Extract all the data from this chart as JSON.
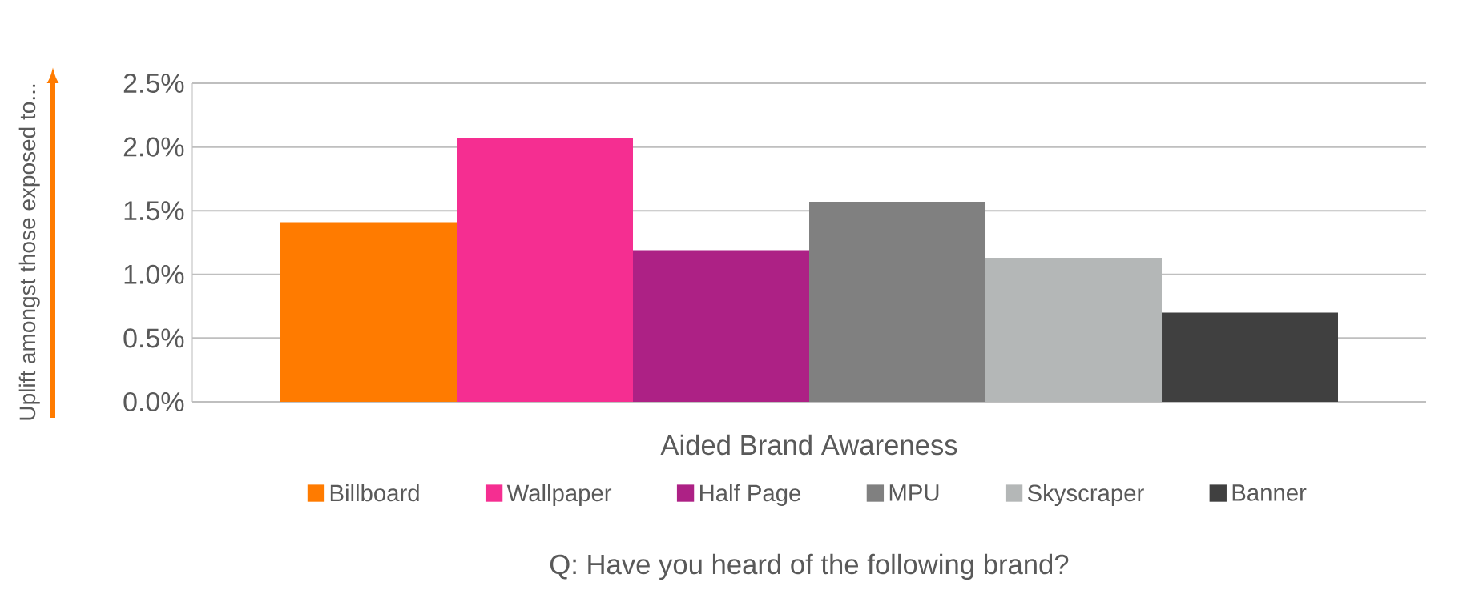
{
  "chart_data": {
    "type": "bar",
    "categories": [
      "Aided Brand Awareness"
    ],
    "ylabel": "Uplift amongst those exposed to...",
    "annotations": [
      "Q: Have you heard of the following brand?"
    ],
    "series": [
      {
        "name": "Billboard",
        "color": "#ff7b00",
        "values": [
          1.41
        ]
      },
      {
        "name": "Wallpaper",
        "color": "#f52e91",
        "values": [
          2.07
        ]
      },
      {
        "name": "Half Page",
        "color": "#ad2185",
        "values": [
          1.19
        ]
      },
      {
        "name": "MPU",
        "color": "#808080",
        "values": [
          1.57
        ]
      },
      {
        "name": "Skyscraper",
        "color": "#b4b7b7",
        "values": [
          1.13
        ]
      },
      {
        "name": "Banner",
        "color": "#404040",
        "values": [
          0.7
        ]
      }
    ],
    "ylim": [
      0,
      2.5
    ],
    "yticks": [
      {
        "value": 0,
        "label": "0.0%"
      },
      {
        "value": 0.5,
        "label": "0.5%"
      },
      {
        "value": 1,
        "label": "1.0%"
      },
      {
        "value": 1.5,
        "label": "1.5%"
      },
      {
        "value": 2,
        "label": "2.0%"
      },
      {
        "value": 2.5,
        "label": "2.5%"
      }
    ],
    "grid": "y",
    "legend": "bottom"
  }
}
